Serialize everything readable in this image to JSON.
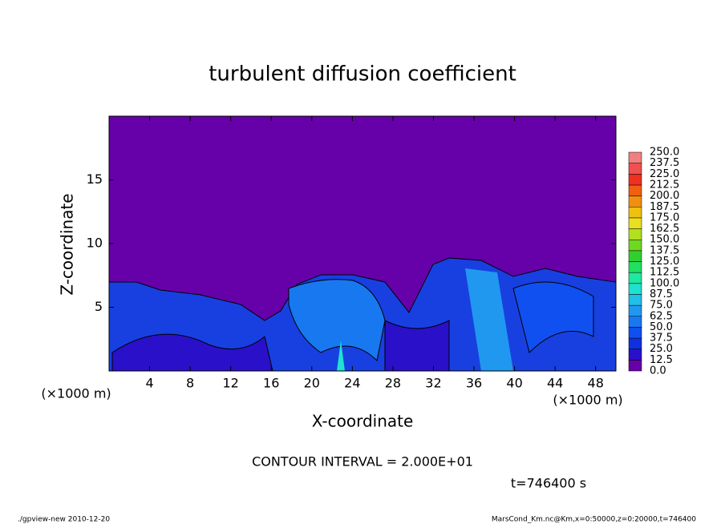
{
  "chart_data": {
    "type": "contour",
    "title": "turbulent diffusion coefficient",
    "x_label": "X-coordinate",
    "y_label": "Z-coordinate",
    "x_unit_left": "(×1000 m)",
    "x_unit_right": "(×1000 m)",
    "xlim": [
      0,
      50
    ],
    "xticks": [
      4,
      8,
      12,
      16,
      20,
      24,
      28,
      32,
      36,
      40,
      44,
      48
    ],
    "ylim": [
      0,
      20
    ],
    "yticks": [
      5,
      10,
      15
    ],
    "levels": [
      {
        "value": 0,
        "label": "0.0"
      },
      {
        "value": 12.5,
        "label": "12.5"
      },
      {
        "value": 25,
        "label": "25.0"
      },
      {
        "value": 37.5,
        "label": "37.5"
      },
      {
        "value": 50,
        "label": "50.0"
      },
      {
        "value": 62.5,
        "label": "62.5"
      },
      {
        "value": 75,
        "label": "75.0"
      },
      {
        "value": 87.5,
        "label": "87.5"
      },
      {
        "value": 100,
        "label": "100.0"
      },
      {
        "value": 112.5,
        "label": "112.5"
      },
      {
        "value": 125,
        "label": "125.0"
      },
      {
        "value": 137.5,
        "label": "137.5"
      },
      {
        "value": 150,
        "label": "150.0"
      },
      {
        "value": 162.5,
        "label": "162.5"
      },
      {
        "value": 175,
        "label": "175.0"
      },
      {
        "value": 187.5,
        "label": "187.5"
      },
      {
        "value": 200,
        "label": "200.0"
      },
      {
        "value": 212.5,
        "label": "212.5"
      },
      {
        "value": 225,
        "label": "225.0"
      },
      {
        "value": 237.5,
        "label": "237.5"
      },
      {
        "value": 250,
        "label": "250.0"
      }
    ],
    "level_colors": [
      "#6600a8",
      "#2a10c8",
      "#1030e0",
      "#1050f0",
      "#1878f0",
      "#2098f0",
      "#20c0e8",
      "#20e0d0",
      "#20e8a0",
      "#20e060",
      "#30d030",
      "#70d820",
      "#b0e020",
      "#e8e020",
      "#f0c010",
      "#f09010",
      "#f06010",
      "#f03020",
      "#f05050",
      "#f08080"
    ],
    "contour_interval": "CONTOUR INTERVAL = 2.000E+01",
    "time_label": "t=746400 s",
    "footer_left": "./gpview-new  2010-12-20",
    "footer_right": "MarsCond_Km.nc@Km,x=0:50000,z=0:20000,t=746400"
  }
}
